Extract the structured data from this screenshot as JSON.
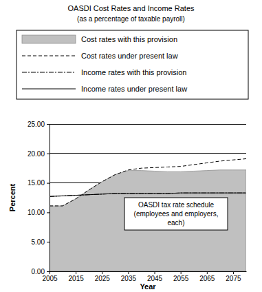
{
  "chart_data": {
    "type": "line",
    "title": "OASDI Cost Rates and Income Rates",
    "subtitle": "(as a percentage of taxable payroll)",
    "x_label": "Year",
    "y_label": "Percent",
    "annotation": [
      "OASDI tax rate schedule",
      "(employees and employers,",
      "each)"
    ],
    "x": [
      2005,
      2010,
      2015,
      2020,
      2025,
      2030,
      2035,
      2040,
      2045,
      2050,
      2055,
      2060,
      2065,
      2070,
      2075,
      2080
    ],
    "series": [
      {
        "name": "Cost rates with this provision",
        "type": "area",
        "color": "#c0c0c0",
        "values": [
          11.1,
          11.1,
          12.3,
          13.8,
          15.2,
          16.4,
          17.1,
          17.1,
          17.0,
          16.9,
          16.9,
          17.0,
          17.1,
          17.2,
          17.2,
          17.2
        ]
      },
      {
        "name": "Cost rates under present law",
        "type": "line",
        "color": "#000000",
        "line_style": "dashed",
        "values": [
          11.1,
          11.1,
          12.3,
          13.8,
          15.2,
          16.4,
          17.2,
          17.5,
          17.6,
          17.7,
          17.8,
          18.1,
          18.4,
          18.7,
          18.9,
          19.1
        ]
      },
      {
        "name": "Income rates with this provision",
        "type": "line",
        "color": "#000000",
        "line_style": "dashdot",
        "values": [
          12.7,
          12.8,
          12.9,
          13.0,
          13.1,
          13.2,
          13.2,
          13.2,
          13.2,
          13.2,
          13.3,
          13.3,
          13.3,
          13.3,
          13.3,
          13.3
        ]
      },
      {
        "name": "Income rates under present law",
        "type": "line",
        "color": "#000000",
        "line_style": "solid",
        "values": [
          12.7,
          12.8,
          12.9,
          13.0,
          13.1,
          13.2,
          13.2,
          13.2,
          13.2,
          13.2,
          13.3,
          13.3,
          13.3,
          13.3,
          13.3,
          13.3
        ]
      }
    ],
    "xlim": [
      2005,
      2080
    ],
    "xticks": [
      2005,
      2015,
      2025,
      2035,
      2045,
      2055,
      2065,
      2075
    ],
    "ylim": [
      0,
      25
    ],
    "yticks": [
      {
        "value": 0,
        "label": "0.00"
      },
      {
        "value": 5,
        "label": "5.00"
      },
      {
        "value": 10,
        "label": "10.00"
      },
      {
        "value": 15,
        "label": "15.00"
      },
      {
        "value": 20,
        "label": "20.00"
      },
      {
        "value": 25,
        "label": "25.00"
      }
    ],
    "grid": true,
    "legend": "top"
  }
}
